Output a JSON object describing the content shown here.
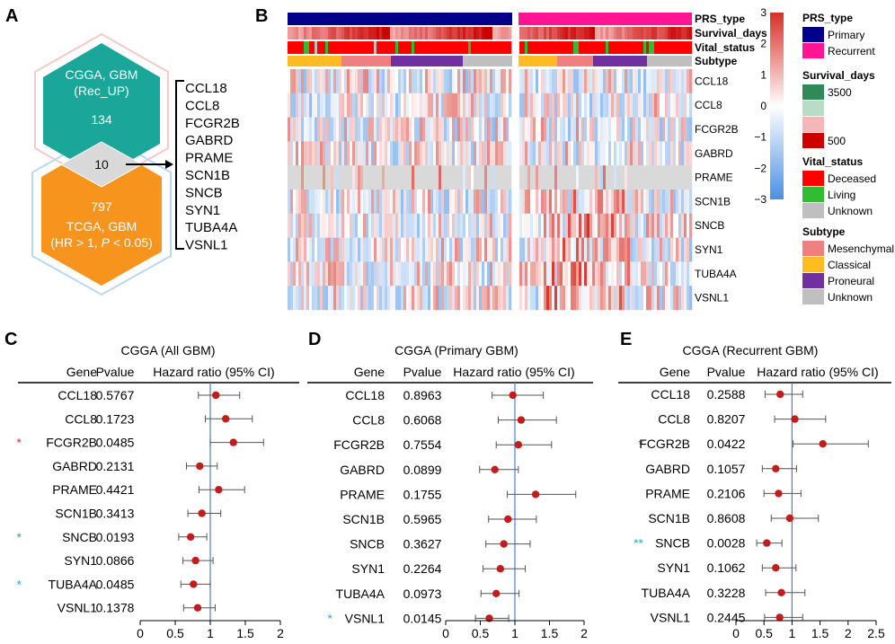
{
  "panels": {
    "A": {
      "letter": "A",
      "top_hex": {
        "line1": "CGGA, GBM",
        "line2": "(Rec_UP)",
        "count": "134",
        "color": "#1aa79a"
      },
      "overlap_count": "10",
      "bottom_hex": {
        "count": "797",
        "line1": "TCGA, GBM",
        "line2_a": "(HR > 1, ",
        "line2_p": "P",
        "line2_b": " < 0.05)",
        "color": "#f7941d"
      },
      "genes": [
        "CCL18",
        "CCL8",
        "FCGR2B",
        "GABRD",
        "PRAME",
        "SCN1B",
        "SNCB",
        "SYN1",
        "TUBA4A",
        "VSNL1"
      ]
    },
    "B": {
      "letter": "B",
      "annotation_rows": [
        "PRS_type",
        "Survival_days",
        "Vital_status",
        "Subtype"
      ],
      "genes": [
        "CCL18",
        "CCL8",
        "FCGR2B",
        "GABRD",
        "PRAME",
        "SCN1B",
        "SNCB",
        "SYN1",
        "TUBA4A",
        "VSNL1"
      ],
      "colorbar_ticks": [
        "3",
        "2",
        "1",
        "0",
        "−1",
        "−2",
        "−3"
      ],
      "colorbar_colors": {
        "high": "#d73027",
        "mid": "#ffffff",
        "low": "#4a90e2"
      },
      "legend": {
        "prs_type": {
          "title": "PRS_type",
          "items": [
            {
              "label": "Primary",
              "color": "#00008b"
            },
            {
              "label": "Recurrent",
              "color": "#ff1493"
            }
          ]
        },
        "survival_days": {
          "title": "Survival_days",
          "items": [
            {
              "label": "3500",
              "color": "#2e8b57"
            },
            {
              "label": "",
              "color": "#b9dcc6"
            },
            {
              "label": "",
              "color": "#f4b6b6"
            },
            {
              "label": "500",
              "color": "#cc0000"
            }
          ]
        },
        "vital_status": {
          "title": "Vital_status",
          "items": [
            {
              "label": "Deceased",
              "color": "#ff0000"
            },
            {
              "label": "Living",
              "color": "#33bb33"
            },
            {
              "label": "Unknown",
              "color": "#bfbfbf"
            }
          ]
        },
        "subtype": {
          "title": "Subtype",
          "items": [
            {
              "label": "Mesenchymal",
              "color": "#f08080"
            },
            {
              "label": "Classical",
              "color": "#ffbb22"
            },
            {
              "label": "Proneural",
              "color": "#7030a0"
            },
            {
              "label": "Unknown",
              "color": "#bfbfbf"
            }
          ]
        }
      }
    },
    "forest_headers": {
      "gene": "Gene",
      "pvalue": "Pvalue",
      "hr": "Hazard ratio (95% CI)"
    },
    "C": {
      "letter": "C",
      "title": "CGGA (All GBM)",
      "rows": [
        {
          "gene": "CCL18",
          "p": "0.5767",
          "star": "",
          "hr": 1.08,
          "lo": 0.83,
          "hi": 1.42
        },
        {
          "gene": "CCL8",
          "p": "0.1723",
          "star": "",
          "hr": 1.22,
          "lo": 0.93,
          "hi": 1.6
        },
        {
          "gene": "FCGR2B",
          "p": "0.0485",
          "star": "*",
          "star_color": "#e0302e",
          "hr": 1.33,
          "lo": 1.0,
          "hi": 1.76
        },
        {
          "gene": "GABRD",
          "p": "0.2131",
          "star": "",
          "hr": 0.85,
          "lo": 0.66,
          "hi": 1.1
        },
        {
          "gene": "PRAME",
          "p": "0.4421",
          "star": "",
          "hr": 1.12,
          "lo": 0.84,
          "hi": 1.49
        },
        {
          "gene": "SCN1B",
          "p": "0.3413",
          "star": "",
          "hr": 0.88,
          "lo": 0.68,
          "hi": 1.15
        },
        {
          "gene": "SNCB",
          "p": "0.0193",
          "star": "*",
          "star_color": "#29a8d6",
          "hr": 0.72,
          "lo": 0.55,
          "hi": 0.95
        },
        {
          "gene": "SYN1",
          "p": "0.0866",
          "star": "",
          "hr": 0.79,
          "lo": 0.61,
          "hi": 1.04
        },
        {
          "gene": "TUBA4A",
          "p": "0.0485",
          "star": "*",
          "star_color": "#29a8d6",
          "hr": 0.76,
          "lo": 0.58,
          "hi": 1.0
        },
        {
          "gene": "VSNL1",
          "p": "0.1378",
          "star": "",
          "hr": 0.82,
          "lo": 0.62,
          "hi": 1.07
        }
      ]
    },
    "D": {
      "letter": "D",
      "title": "CGGA (Primary GBM)",
      "rows": [
        {
          "gene": "CCL18",
          "p": "0.8963",
          "star": "",
          "hr": 0.97,
          "lo": 0.67,
          "hi": 1.41
        },
        {
          "gene": "CCL8",
          "p": "0.6068",
          "star": "",
          "hr": 1.09,
          "lo": 0.76,
          "hi": 1.6
        },
        {
          "gene": "FCGR2B",
          "p": "0.7554",
          "star": "",
          "hr": 1.05,
          "lo": 0.73,
          "hi": 1.53
        },
        {
          "gene": "GABRD",
          "p": "0.0899",
          "star": "",
          "hr": 0.71,
          "lo": 0.49,
          "hi": 1.05
        },
        {
          "gene": "PRAME",
          "p": "0.1755",
          "star": "",
          "hr": 1.3,
          "lo": 0.89,
          "hi": 1.88
        },
        {
          "gene": "SCN1B",
          "p": "0.5965",
          "star": "",
          "hr": 0.9,
          "lo": 0.62,
          "hi": 1.31
        },
        {
          "gene": "SNCB",
          "p": "0.3627",
          "star": "",
          "hr": 0.84,
          "lo": 0.58,
          "hi": 1.22
        },
        {
          "gene": "SYN1",
          "p": "0.2264",
          "star": "",
          "hr": 0.79,
          "lo": 0.54,
          "hi": 1.15
        },
        {
          "gene": "TUBA4A",
          "p": "0.0973",
          "star": "",
          "hr": 0.73,
          "lo": 0.51,
          "hi": 1.06
        },
        {
          "gene": "VSNL1",
          "p": "0.0145",
          "star": "*",
          "star_color": "#29a8d6",
          "hr": 0.63,
          "lo": 0.43,
          "hi": 0.91
        }
      ]
    },
    "E": {
      "letter": "E",
      "title": "CGGA (Recurrent GBM)",
      "rows": [
        {
          "gene": "CCL18",
          "p": "0.2588",
          "star": "",
          "hr": 0.79,
          "lo": 0.52,
          "hi": 1.19
        },
        {
          "gene": "CCL8",
          "p": "0.8207",
          "star": "",
          "hr": 1.05,
          "lo": 0.69,
          "hi": 1.6
        },
        {
          "gene": "FCGR2B",
          "p": "0.0422",
          "star": "*",
          "star_color": "#e0302e",
          "hr": 1.55,
          "lo": 1.02,
          "hi": 2.36
        },
        {
          "gene": "GABRD",
          "p": "0.1057",
          "star": "",
          "hr": 0.71,
          "lo": 0.47,
          "hi": 1.08
        },
        {
          "gene": "PRAME",
          "p": "0.2106",
          "star": "",
          "hr": 0.76,
          "lo": 0.5,
          "hi": 1.16
        },
        {
          "gene": "SCN1B",
          "p": "0.8608",
          "star": "",
          "hr": 0.96,
          "lo": 0.63,
          "hi": 1.47
        },
        {
          "gene": "SNCB",
          "p": "0.0028",
          "star": "**",
          "star_color": "#29a8d6",
          "hr": 0.55,
          "lo": 0.37,
          "hi": 0.82
        },
        {
          "gene": "SYN1",
          "p": "0.1062",
          "star": "",
          "hr": 0.71,
          "lo": 0.47,
          "hi": 1.07
        },
        {
          "gene": "TUBA4A",
          "p": "0.3228",
          "star": "",
          "hr": 0.81,
          "lo": 0.53,
          "hi": 1.23
        },
        {
          "gene": "VSNL1",
          "p": "0.2445",
          "star": "",
          "hr": 0.78,
          "lo": 0.51,
          "hi": 1.19
        }
      ]
    }
  },
  "chart_data": [
    {
      "type": "scatter",
      "title": "CGGA (All GBM)",
      "xlabel": "Hazard ratio (95% CI)",
      "xlim": [
        0,
        2
      ],
      "xticks": [
        "0",
        "0.5",
        "1",
        "1.5",
        "2"
      ],
      "reference_line": 1,
      "categories": [
        "CCL18",
        "CCL8",
        "FCGR2B",
        "GABRD",
        "PRAME",
        "SCN1B",
        "SNCB",
        "SYN1",
        "TUBA4A",
        "VSNL1"
      ],
      "values": [
        1.08,
        1.22,
        1.33,
        0.85,
        1.12,
        0.88,
        0.72,
        0.79,
        0.76,
        0.82
      ]
    },
    {
      "type": "scatter",
      "title": "CGGA (Primary GBM)",
      "xlabel": "Hazard ratio (95% CI)",
      "xlim": [
        0,
        2
      ],
      "xticks": [
        "0",
        "0.5",
        "1",
        "1.5",
        "2"
      ],
      "reference_line": 1,
      "categories": [
        "CCL18",
        "CCL8",
        "FCGR2B",
        "GABRD",
        "PRAME",
        "SCN1B",
        "SNCB",
        "SYN1",
        "TUBA4A",
        "VSNL1"
      ],
      "values": [
        0.97,
        1.09,
        1.05,
        0.71,
        1.3,
        0.9,
        0.84,
        0.79,
        0.73,
        0.63
      ]
    },
    {
      "type": "scatter",
      "title": "CGGA (Recurrent GBM)",
      "xlabel": "Hazard ratio (95% CI)",
      "xlim": [
        0,
        2.5
      ],
      "xticks": [
        "0",
        "0.5",
        "1",
        "1.5",
        "2",
        "2.5"
      ],
      "reference_line": 1,
      "categories": [
        "CCL18",
        "CCL8",
        "FCGR2B",
        "GABRD",
        "PRAME",
        "SCN1B",
        "SNCB",
        "SYN1",
        "TUBA4A",
        "VSNL1"
      ],
      "values": [
        0.79,
        1.05,
        1.55,
        0.71,
        0.76,
        0.96,
        0.55,
        0.71,
        0.81,
        0.78
      ]
    }
  ]
}
